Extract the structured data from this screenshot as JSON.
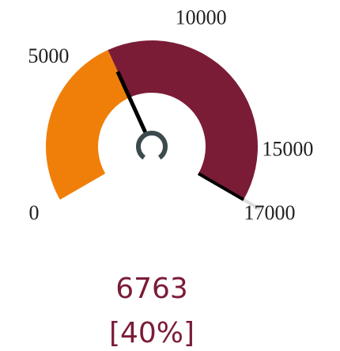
{
  "chart_data": {
    "type": "gauge",
    "min": 0,
    "max": 17000,
    "value": 6763,
    "percent_label": "[40%]",
    "ticks": [
      0,
      5000,
      10000,
      15000,
      17000
    ],
    "color": "#f07f09",
    "track_color": "#7b1c37"
  }
}
